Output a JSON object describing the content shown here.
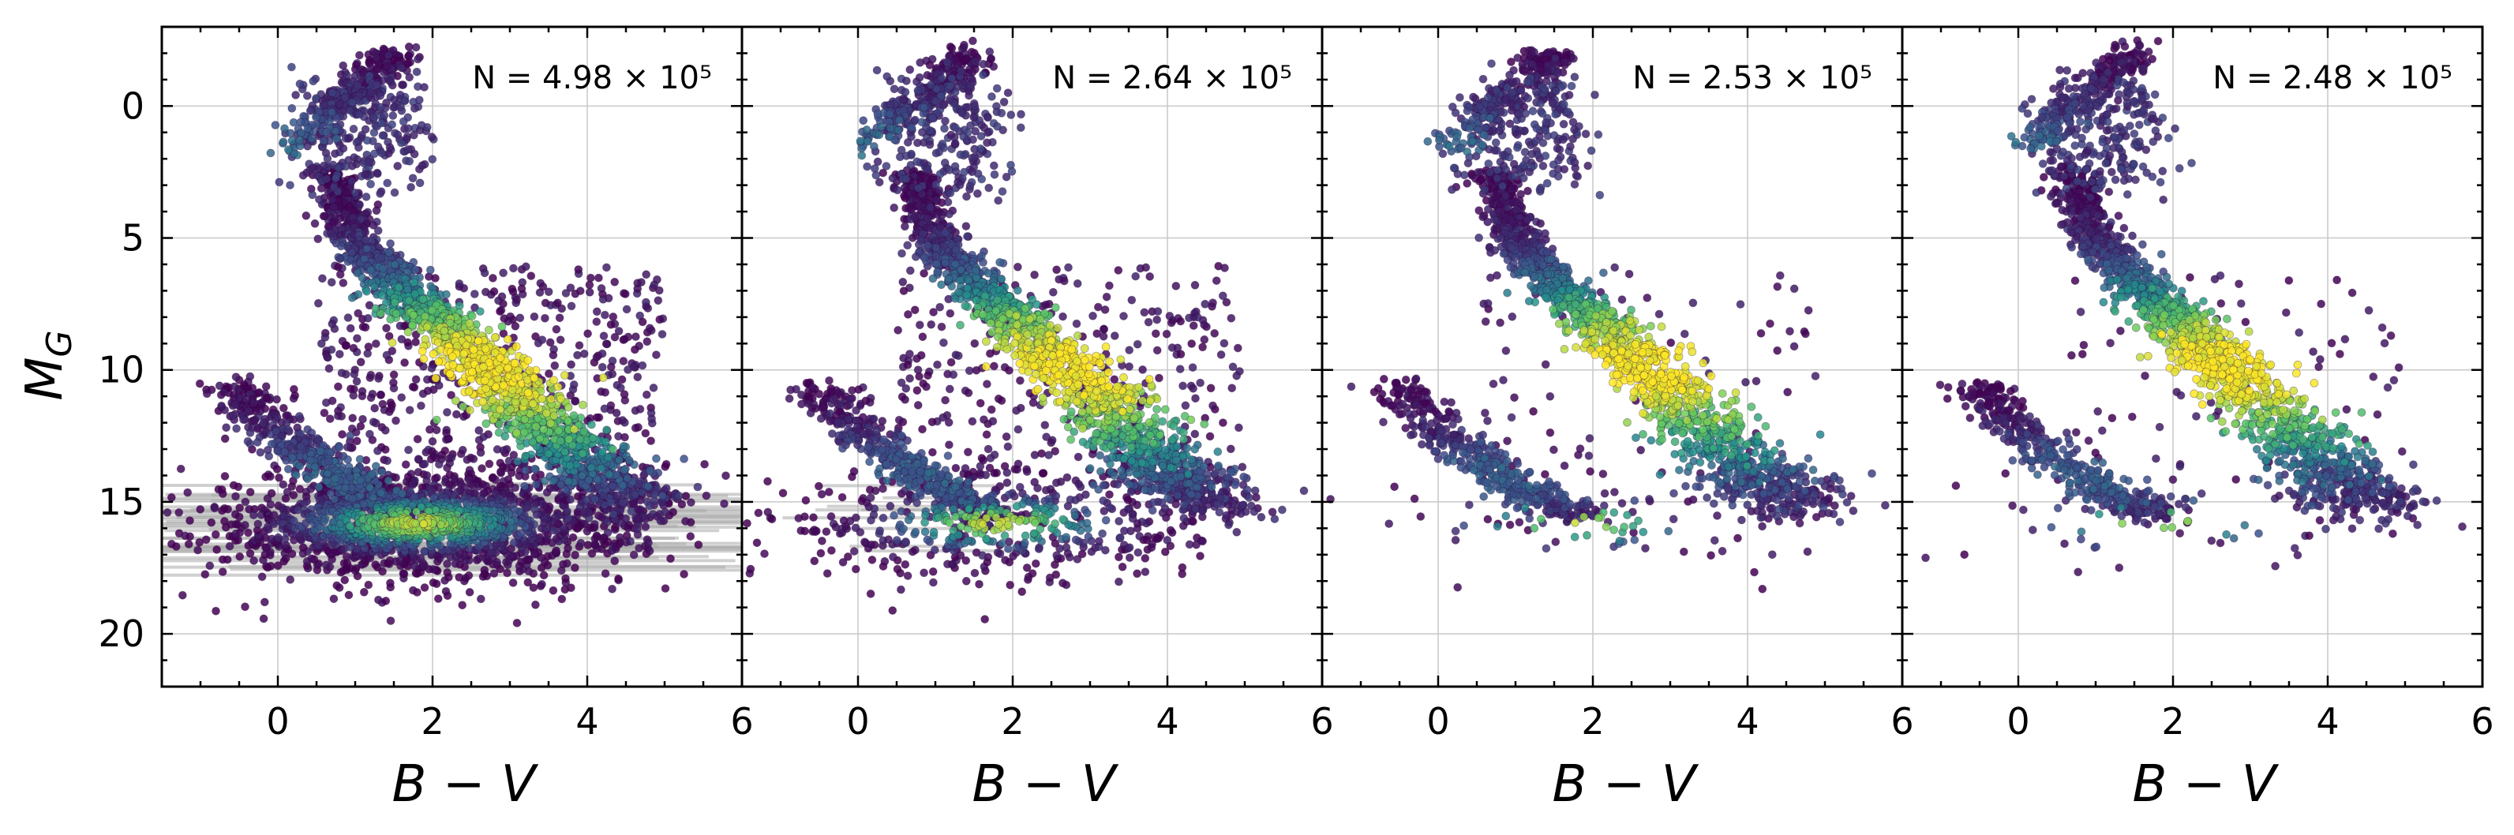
{
  "chart_data": {
    "type": "scatter",
    "layout": "4 panels side by side, shared y axis (inverted)",
    "colormap": [
      "#440154",
      "#3b528b",
      "#21918c",
      "#5ec962",
      "#fde725"
    ],
    "marker_color_low": "#440154",
    "error_bar_color": "#aaaaaa",
    "grid": true,
    "xlabel_text": "B − V",
    "ylabel": {
      "main": "M",
      "sub": "G"
    },
    "xlim": [
      -1.5,
      6
    ],
    "ylim": [
      22,
      -3
    ],
    "x_ticks": [
      0,
      2,
      4,
      6
    ],
    "y_ticks": [
      0,
      5,
      10,
      15,
      20
    ],
    "panels": [
      {
        "n_label": "N = 4.98 × 10⁵",
        "n_value": 498000,
        "components": [
          "giant_branch",
          "main_sequence",
          "white_dwarfs",
          "noise_cloud",
          "error_bars"
        ]
      },
      {
        "n_label": "N = 2.64 × 10⁵",
        "n_value": 264000,
        "components": [
          "giant_branch",
          "main_sequence",
          "white_dwarfs",
          "sparse_noise",
          "few_error_bars"
        ]
      },
      {
        "n_label": "N = 2.53 × 10⁵",
        "n_value": 253000,
        "components": [
          "giant_branch",
          "main_sequence",
          "white_dwarfs",
          "light_noise"
        ]
      },
      {
        "n_label": "N = 2.48 × 10⁵",
        "n_value": 248000,
        "components": [
          "giant_branch",
          "main_sequence",
          "white_dwarfs",
          "light_noise"
        ]
      }
    ],
    "structures": {
      "main_sequence_track": [
        [
          0.7,
          2.5
        ],
        [
          1.0,
          5.0
        ],
        [
          1.6,
          7.0
        ],
        [
          2.2,
          8.5
        ],
        [
          2.8,
          10.2
        ],
        [
          3.4,
          12.0
        ],
        [
          4.0,
          13.8
        ],
        [
          4.7,
          15.3
        ]
      ],
      "giant_branch_track": [
        [
          0.2,
          1.5
        ],
        [
          0.6,
          0.2
        ],
        [
          1.0,
          -0.5
        ],
        [
          1.3,
          -1.5
        ],
        [
          1.5,
          -2.0
        ]
      ],
      "white_dwarf_track": [
        [
          -0.6,
          10.5
        ],
        [
          0.0,
          12.3
        ],
        [
          0.6,
          13.6
        ],
        [
          1.2,
          14.7
        ],
        [
          1.8,
          15.6
        ]
      ],
      "noise_cloud_center": [
        1.8,
        15.8
      ]
    }
  }
}
